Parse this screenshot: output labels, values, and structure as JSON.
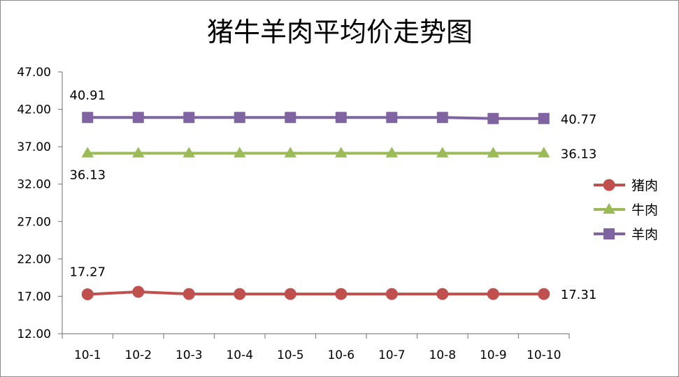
{
  "chart_data": {
    "type": "line",
    "title": "猪牛羊肉平均价走势图",
    "xlabel": "",
    "ylabel": "",
    "categories": [
      "10-1",
      "10-2",
      "10-3",
      "10-4",
      "10-5",
      "10-6",
      "10-7",
      "10-8",
      "10-9",
      "10-10"
    ],
    "ylim": [
      12.0,
      47.0
    ],
    "yticks": [
      "12.00",
      "17.00",
      "22.00",
      "27.00",
      "32.00",
      "37.00",
      "42.00",
      "47.00"
    ],
    "grid": false,
    "legend_position": "right",
    "series": [
      {
        "name": "猪肉",
        "color": "#c0504d",
        "marker": "circle",
        "values": [
          17.27,
          17.6,
          17.31,
          17.31,
          17.31,
          17.31,
          17.31,
          17.31,
          17.31,
          17.31
        ]
      },
      {
        "name": "牛肉",
        "color": "#9bbb59",
        "marker": "triangle",
        "values": [
          36.13,
          36.13,
          36.13,
          36.13,
          36.13,
          36.13,
          36.13,
          36.13,
          36.13,
          36.13
        ]
      },
      {
        "name": "羊肉",
        "color": "#8064a2",
        "marker": "square",
        "values": [
          40.91,
          40.91,
          40.91,
          40.91,
          40.91,
          40.91,
          40.91,
          40.91,
          40.77,
          40.77
        ]
      }
    ],
    "data_labels": [
      {
        "series": 0,
        "index": 0,
        "text": "17.27",
        "position": "above"
      },
      {
        "series": 0,
        "index": 9,
        "text": "17.31",
        "position": "right"
      },
      {
        "series": 1,
        "index": 0,
        "text": "36.13",
        "position": "below"
      },
      {
        "series": 1,
        "index": 9,
        "text": "36.13",
        "position": "right"
      },
      {
        "series": 2,
        "index": 0,
        "text": "40.91",
        "position": "above"
      },
      {
        "series": 2,
        "index": 9,
        "text": "40.77",
        "position": "right"
      }
    ]
  }
}
